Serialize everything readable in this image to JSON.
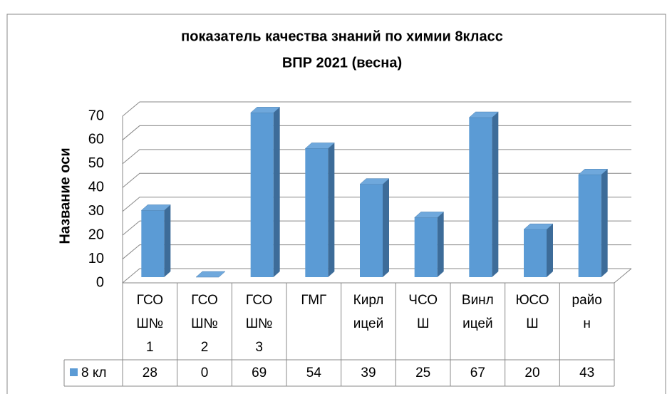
{
  "chart_data": {
    "type": "bar3d",
    "title": [
      "показатель качества знаний по химии  8класс",
      "ВПР 2021 (весна)"
    ],
    "y_axis_label": "Название оси",
    "categories": [
      [
        "ГСО",
        "Ш№",
        "1"
      ],
      [
        "ГСО",
        "Ш№",
        "2"
      ],
      [
        "ГСО",
        "Ш№",
        "3"
      ],
      [
        "ГМГ"
      ],
      [
        "Кирл",
        "ицей"
      ],
      [
        "ЧСО",
        "Ш"
      ],
      [
        "Винл",
        "ицей"
      ],
      [
        "ЮСО",
        "Ш"
      ],
      [
        "райо",
        "н"
      ]
    ],
    "series": [
      {
        "name": "8 кл",
        "color": "#5b9bd5",
        "values": [
          28,
          0,
          69,
          54,
          39,
          25,
          67,
          20,
          43
        ]
      }
    ],
    "ylim": [
      0,
      70
    ],
    "yticks": [
      0,
      10,
      20,
      30,
      40,
      50,
      60,
      70
    ],
    "grid": true,
    "data_table": true
  }
}
